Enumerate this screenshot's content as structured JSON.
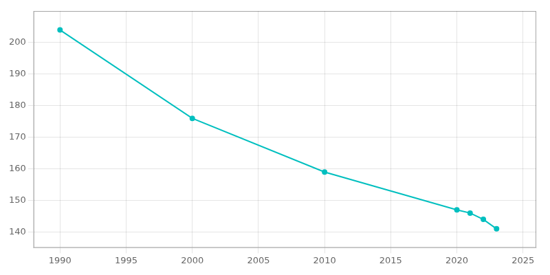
{
  "chart_data": {
    "type": "line",
    "x": [
      1990,
      2000,
      2010,
      2020,
      2021,
      2022,
      2023
    ],
    "values": [
      204,
      176,
      159,
      147,
      146,
      144,
      141
    ],
    "color": "#00BFBF",
    "marker": "circle",
    "xlim": [
      1988,
      2026
    ],
    "ylim": [
      135,
      210
    ],
    "xticks": [
      1990,
      1995,
      2000,
      2005,
      2010,
      2015,
      2020,
      2025
    ],
    "yticks": [
      140,
      150,
      160,
      170,
      180,
      190,
      200
    ],
    "grid": true
  }
}
